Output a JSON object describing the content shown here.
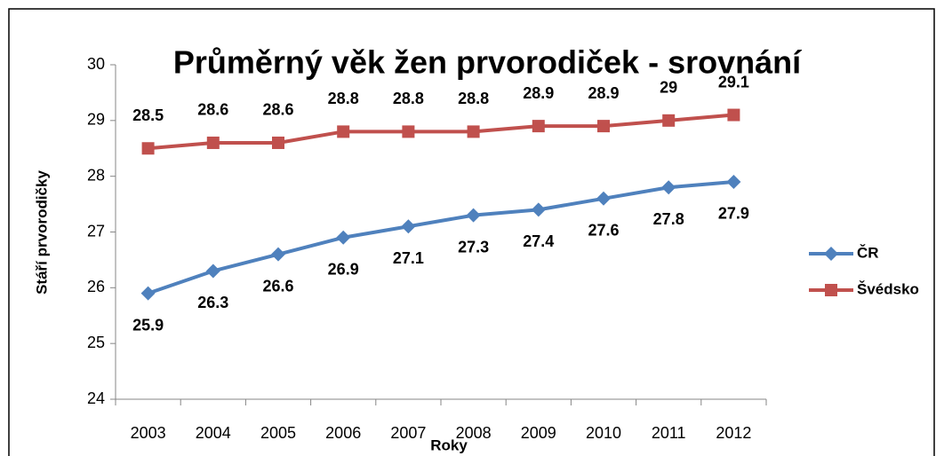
{
  "chart_data": {
    "type": "line",
    "title": "Průměrný věk žen prvorodiček - srovnání",
    "x_label": "Roky",
    "y_label": "Stáří prvorodičky",
    "categories": [
      "2003",
      "2004",
      "2005",
      "2006",
      "2007",
      "2008",
      "2009",
      "2010",
      "2011",
      "2012"
    ],
    "series": [
      {
        "name": "ČR",
        "color": "#4f81bd",
        "marker": "diamond",
        "values": [
          25.9,
          26.3,
          26.6,
          26.9,
          27.1,
          27.3,
          27.4,
          27.6,
          27.8,
          27.9
        ]
      },
      {
        "name": "Švédsko",
        "color": "#c0504d",
        "marker": "square",
        "values": [
          28.5,
          28.6,
          28.6,
          28.8,
          28.8,
          28.8,
          28.9,
          28.9,
          29,
          29.1
        ]
      }
    ],
    "ylim": [
      24,
      30
    ],
    "yticks": [
      24,
      25,
      26,
      27,
      28,
      29,
      30
    ],
    "grid": false,
    "legend": "right"
  }
}
